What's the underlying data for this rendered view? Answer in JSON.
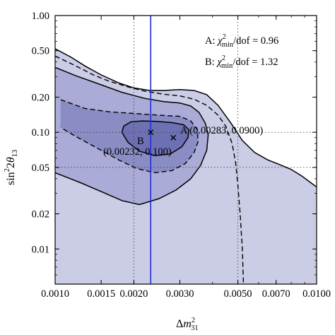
{
  "chart_data": {
    "type": "contour",
    "xlabel": "Δm²₃₁",
    "ylabel": "sin²2θ₁₃",
    "x_scale": "log",
    "y_scale": "log",
    "xlim": [
      0.001,
      0.01
    ],
    "ylim": [
      0.005,
      1.0
    ],
    "x_ticks": [
      {
        "value": 0.001,
        "label": "0.0010"
      },
      {
        "value": 0.0015,
        "label": "0.0015"
      },
      {
        "value": 0.002,
        "label": "0.0020"
      },
      {
        "value": 0.003,
        "label": "0.0030"
      },
      {
        "value": 0.005,
        "label": "0.0050"
      },
      {
        "value": 0.007,
        "label": "0.0070"
      },
      {
        "value": 0.01,
        "label": "0.0100"
      }
    ],
    "y_ticks": [
      {
        "value": 1.0,
        "label": "1.00"
      },
      {
        "value": 0.5,
        "label": "0.50"
      },
      {
        "value": 0.2,
        "label": "0.20"
      },
      {
        "value": 0.1,
        "label": "0.10"
      },
      {
        "value": 0.05,
        "label": "0.05"
      },
      {
        "value": 0.02,
        "label": "0.02"
      },
      {
        "value": 0.01,
        "label": "0.01"
      }
    ],
    "grid": {
      "style": "dotted",
      "x_at": [
        0.002,
        0.005
      ],
      "y_at": [
        0.1,
        0.05
      ]
    },
    "vertical_line": {
      "x": 0.00232,
      "color": "#1f2fd6"
    },
    "points": [
      {
        "id": "A",
        "x": 0.00283,
        "y": 0.09,
        "marker": "x",
        "label": "A (0.00283, 0.0900)"
      },
      {
        "id": "B",
        "x": 0.00232,
        "y": 0.1,
        "marker": "x",
        "label_id": "B",
        "label_coords": "(0.00232, 0.100)"
      }
    ],
    "legend_text": [
      {
        "prefix": "A: ",
        "chi": "χ",
        "sup": "2",
        "sub": "min",
        "suffix": "/dof = 0.96"
      },
      {
        "prefix": "B: ",
        "chi": "χ",
        "sup": "2",
        "sub": "min",
        "suffix": "/dof = 1.32"
      }
    ],
    "colors": {
      "region_outer": "#cbcce6",
      "region_mid": "#aaabd6",
      "region_inner": "#8a8cc4",
      "region_core": "#6e70b4",
      "line": "#000000"
    },
    "regions": [
      {
        "level": "outer",
        "boundary": [
          [
            0.001,
            0.52
          ],
          [
            0.00115,
            0.44
          ],
          [
            0.0013,
            0.37
          ],
          [
            0.0015,
            0.31
          ],
          [
            0.00175,
            0.265
          ],
          [
            0.002,
            0.24
          ],
          [
            0.0023,
            0.228
          ],
          [
            0.0026,
            0.228
          ],
          [
            0.003,
            0.232
          ],
          [
            0.0034,
            0.228
          ],
          [
            0.0038,
            0.21
          ],
          [
            0.0042,
            0.17
          ],
          [
            0.0047,
            0.12
          ],
          [
            0.0052,
            0.085
          ],
          [
            0.0058,
            0.067
          ],
          [
            0.0065,
            0.058
          ],
          [
            0.0072,
            0.053
          ],
          [
            0.008,
            0.048
          ],
          [
            0.0088,
            0.042
          ],
          [
            0.0095,
            0.037
          ],
          [
            0.01,
            0.034
          ]
        ]
      },
      {
        "level": "dashed_outer",
        "boundary": [
          [
            0.001,
            0.45
          ],
          [
            0.0012,
            0.37
          ],
          [
            0.0014,
            0.31
          ],
          [
            0.0016,
            0.275
          ],
          [
            0.0019,
            0.245
          ],
          [
            0.0022,
            0.225
          ],
          [
            0.0026,
            0.212
          ],
          [
            0.003,
            0.205
          ],
          [
            0.0034,
            0.192
          ],
          [
            0.0038,
            0.17
          ],
          [
            0.0042,
            0.14
          ],
          [
            0.0045,
            0.112
          ],
          [
            0.00475,
            0.08
          ],
          [
            0.0049,
            0.055
          ],
          [
            0.005,
            0.035
          ],
          [
            0.0051,
            0.02
          ],
          [
            0.0052,
            0.01
          ],
          [
            0.00525,
            0.005
          ]
        ]
      },
      {
        "level": "mid",
        "boundary": [
          [
            0.001,
            0.36
          ],
          [
            0.0012,
            0.305
          ],
          [
            0.0015,
            0.255
          ],
          [
            0.0018,
            0.22
          ],
          [
            0.0022,
            0.195
          ],
          [
            0.0026,
            0.183
          ],
          [
            0.003,
            0.178
          ],
          [
            0.0033,
            0.168
          ],
          [
            0.00355,
            0.148
          ],
          [
            0.00375,
            0.12
          ],
          [
            0.00385,
            0.095
          ],
          [
            0.0038,
            0.07
          ],
          [
            0.0036,
            0.052
          ],
          [
            0.0033,
            0.04
          ],
          [
            0.0029,
            0.032
          ],
          [
            0.0025,
            0.027
          ],
          [
            0.0021,
            0.024
          ],
          [
            0.0018,
            0.026
          ],
          [
            0.0015,
            0.031
          ],
          [
            0.00125,
            0.037
          ],
          [
            0.001,
            0.045
          ]
        ]
      },
      {
        "level": "dashed_inner",
        "boundary": [
          [
            0.00105,
            0.19
          ],
          [
            0.0013,
            0.16
          ],
          [
            0.0016,
            0.15
          ],
          [
            0.002,
            0.145
          ],
          [
            0.0025,
            0.14
          ],
          [
            0.003,
            0.137
          ],
          [
            0.0033,
            0.125
          ],
          [
            0.0035,
            0.105
          ],
          [
            0.00352,
            0.083
          ],
          [
            0.0034,
            0.067
          ],
          [
            0.00315,
            0.054
          ],
          [
            0.0028,
            0.047
          ],
          [
            0.0024,
            0.045
          ],
          [
            0.00205,
            0.049
          ],
          [
            0.00175,
            0.058
          ],
          [
            0.00145,
            0.073
          ],
          [
            0.0012,
            0.092
          ],
          [
            0.00105,
            0.11
          ]
        ]
      },
      {
        "level": "core",
        "boundary": [
          [
            0.00183,
            0.113
          ],
          [
            0.00195,
            0.123
          ],
          [
            0.00215,
            0.125
          ],
          [
            0.00245,
            0.124
          ],
          [
            0.0028,
            0.121
          ],
          [
            0.0031,
            0.116
          ],
          [
            0.00325,
            0.105
          ],
          [
            0.00322,
            0.09
          ],
          [
            0.00305,
            0.075
          ],
          [
            0.00275,
            0.065
          ],
          [
            0.0024,
            0.063
          ],
          [
            0.0021,
            0.069
          ],
          [
            0.0019,
            0.082
          ],
          [
            0.0018,
            0.1
          ]
        ]
      }
    ]
  }
}
